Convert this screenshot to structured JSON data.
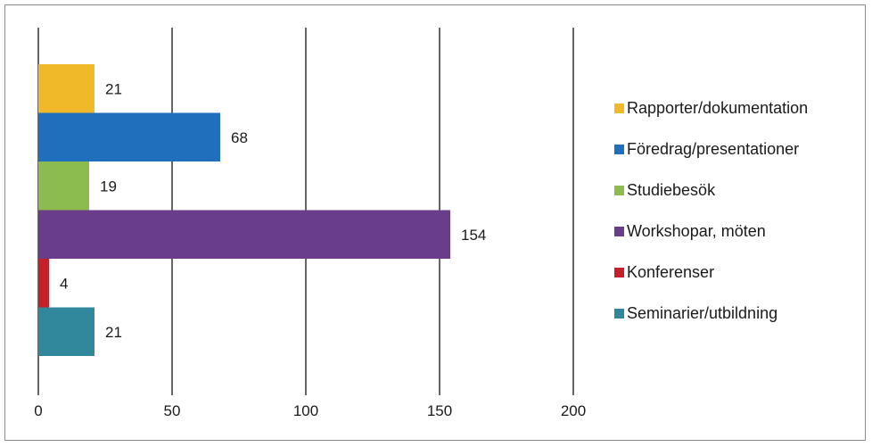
{
  "chart_data": {
    "type": "bar",
    "orientation": "horizontal",
    "categories": [
      "Rapporter/dokumentation",
      "Föredrag/presentationer",
      "Studiebesök",
      "Workshopar, möten",
      "Konferenser",
      "Seminarier/utbildning"
    ],
    "values": [
      21,
      68,
      19,
      154,
      4,
      21
    ],
    "colors": [
      "#f0b92a",
      "#1f6fbd",
      "#8cbc4f",
      "#6a3d8b",
      "#c51f2a",
      "#31889c"
    ],
    "xlim": [
      0,
      200
    ],
    "xticks": [
      0,
      50,
      100,
      150,
      200
    ],
    "grid": "vertical",
    "legend": "right",
    "title": "",
    "xlabel": "",
    "ylabel": ""
  }
}
